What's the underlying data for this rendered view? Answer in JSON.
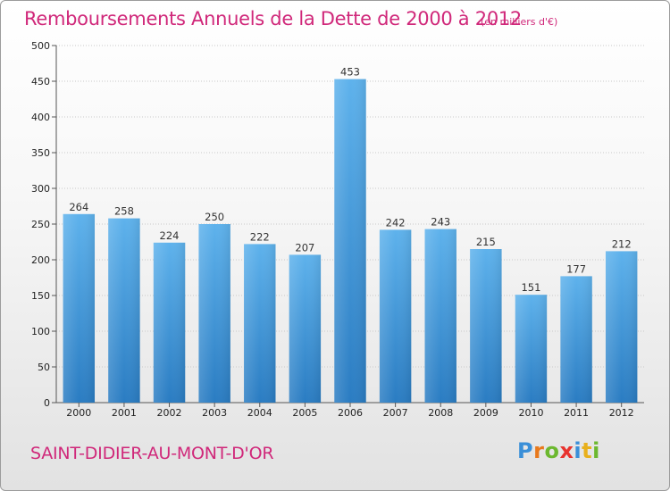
{
  "title": "Remboursements Annuels de la Dette de 2000 à 2012",
  "unit": "(en milliers d'€)",
  "commune": "SAINT-DIDIER-AU-MONT-D'OR",
  "logo": {
    "text": "Proxiti",
    "letters": [
      "P",
      "r",
      "o",
      "x",
      "i",
      "t",
      "i"
    ],
    "colors": [
      "#3a8fd8",
      "#e8791c",
      "#6cb82f",
      "#e8332e",
      "#3a8fd8",
      "#e8b01c",
      "#6cb82f"
    ]
  },
  "colors": {
    "bar_top": "#5eb2ec",
    "bar_bottom": "#2a7cc2",
    "accent": "#d0287a"
  },
  "chart_data": {
    "type": "bar",
    "title": "Remboursements Annuels de la Dette de 2000 à 2012",
    "xlabel": "",
    "ylabel": "",
    "categories": [
      "2000",
      "2001",
      "2002",
      "2003",
      "2004",
      "2005",
      "2006",
      "2007",
      "2008",
      "2009",
      "2010",
      "2011",
      "2012"
    ],
    "values": [
      264,
      258,
      224,
      250,
      222,
      207,
      453,
      242,
      243,
      215,
      151,
      177,
      212
    ],
    "ylim": [
      0,
      500
    ],
    "yticks": [
      0,
      50,
      100,
      150,
      200,
      250,
      300,
      350,
      400,
      450,
      500
    ],
    "grid": true
  }
}
